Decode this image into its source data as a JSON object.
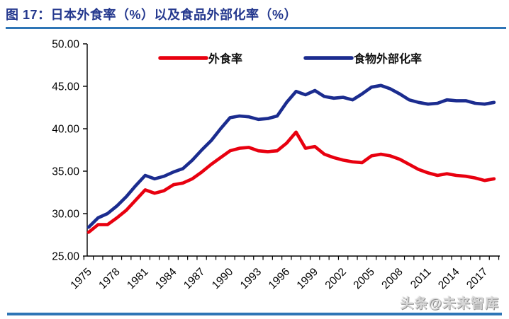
{
  "header": {
    "title": "图 17：日本外食率（%）以及食品外部化率（%）",
    "title_color": "#24388E",
    "rule_color": "#2E75B6"
  },
  "watermark": {
    "text": "头条@未来智库"
  },
  "chart_data": {
    "type": "line",
    "x": [
      1975,
      1976,
      1977,
      1978,
      1979,
      1980,
      1981,
      1982,
      1983,
      1984,
      1985,
      1986,
      1987,
      1988,
      1989,
      1990,
      1991,
      1992,
      1993,
      1994,
      1995,
      1996,
      1997,
      1998,
      1999,
      2000,
      2001,
      2002,
      2003,
      2004,
      2005,
      2006,
      2007,
      2008,
      2009,
      2010,
      2011,
      2012,
      2013,
      2014,
      2015,
      2016,
      2017,
      2018
    ],
    "series": [
      {
        "name": "外食率",
        "color": "#E8000F",
        "values": [
          27.8,
          28.7,
          28.7,
          29.5,
          30.4,
          31.6,
          32.8,
          32.4,
          32.7,
          33.4,
          33.6,
          34.1,
          34.9,
          35.8,
          36.6,
          37.4,
          37.7,
          37.8,
          37.4,
          37.3,
          37.4,
          38.3,
          39.6,
          37.7,
          37.9,
          37.0,
          36.6,
          36.3,
          36.1,
          36.0,
          36.8,
          37.0,
          36.8,
          36.4,
          35.8,
          35.2,
          34.8,
          34.5,
          34.7,
          34.5,
          34.4,
          34.2,
          33.9,
          34.1
        ]
      },
      {
        "name": "食物外部化率",
        "color": "#1B2C8F",
        "values": [
          28.4,
          29.5,
          30.0,
          30.9,
          32.0,
          33.3,
          34.5,
          34.1,
          34.4,
          34.9,
          35.3,
          36.3,
          37.5,
          38.6,
          40.0,
          41.3,
          41.5,
          41.4,
          41.1,
          41.2,
          41.5,
          43.1,
          44.4,
          44.0,
          44.5,
          43.8,
          43.6,
          43.7,
          43.4,
          44.1,
          44.9,
          45.1,
          44.7,
          44.1,
          43.4,
          43.1,
          42.9,
          43.0,
          43.4,
          43.3,
          43.3,
          43.0,
          42.9,
          43.1
        ]
      }
    ],
    "ylim": [
      25,
      50
    ],
    "ytick_labels": [
      "25.00",
      "30.00",
      "35.00",
      "40.00",
      "45.00",
      "50.00"
    ],
    "xtick_labels": [
      "1975",
      "1978",
      "1981",
      "1984",
      "1987",
      "1990",
      "1993",
      "1996",
      "1999",
      "2002",
      "2005",
      "2008",
      "2011",
      "2014",
      "2017"
    ],
    "grid": false,
    "legend_position": "top-center",
    "axis_color": "#000000",
    "tick_label_color": "#000000"
  }
}
